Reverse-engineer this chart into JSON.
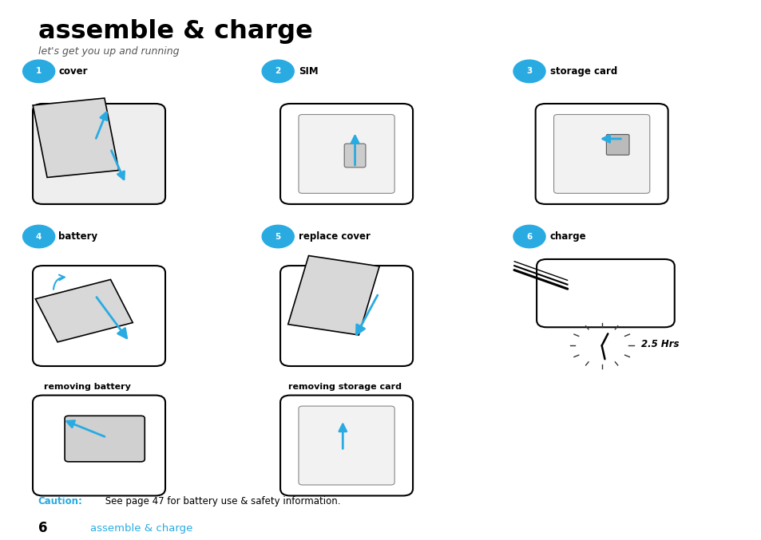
{
  "title": "assemble & charge",
  "subtitle": "let's get you up and running",
  "bg_color": "#ffffff",
  "title_color": "#000000",
  "subtitle_color": "#555555",
  "cyan_color": "#29abe2",
  "step_labels": [
    "cover",
    "SIM",
    "storage card",
    "battery",
    "replace cover",
    "charge"
  ],
  "step_numbers": [
    "1",
    "2",
    "3",
    "4",
    "5",
    "6"
  ],
  "sub_labels": [
    "removing battery",
    "removing storage card"
  ],
  "caution_text": "Caution:",
  "caution_body": " See page 47 for battery use & safety information.",
  "footer_number": "6",
  "footer_text": "assemble & charge",
  "hrs_label": "2.5 Hrs"
}
